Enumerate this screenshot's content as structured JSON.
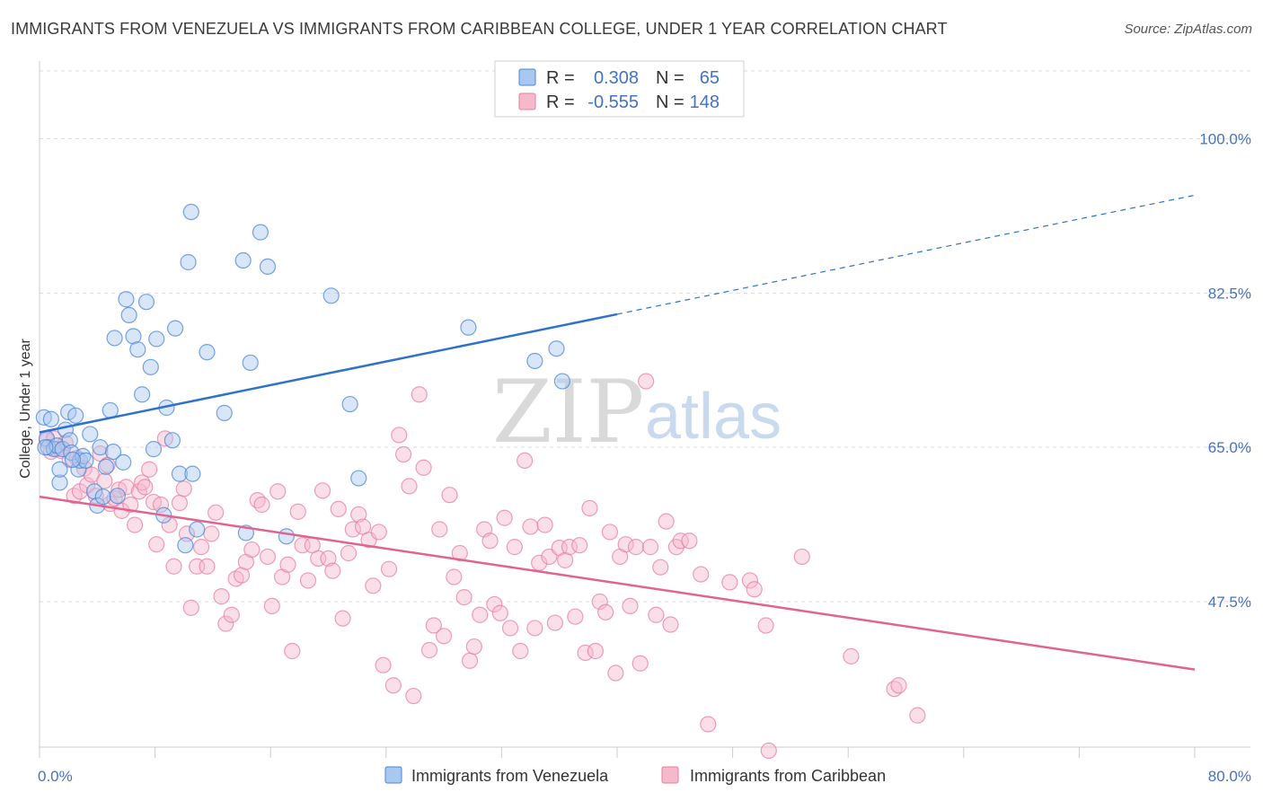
{
  "title": "IMMIGRANTS FROM VENEZUELA VS IMMIGRANTS FROM CARIBBEAN COLLEGE, UNDER 1 YEAR CORRELATION CHART",
  "source": "Source: ZipAtlas.com",
  "watermark": {
    "zip": "ZIP",
    "atlas": "atlas"
  },
  "colors": {
    "venezuela_fill": "#a9c8ef",
    "venezuela_stroke": "#4a86d8",
    "venezuela_line": "#2f72c9",
    "caribbean_fill": "#f6b8cb",
    "caribbean_stroke": "#e77fa1",
    "caribbean_line": "#e0648f",
    "tick_label": "#4472c4",
    "grid": "#dcdcdc"
  },
  "legend": {
    "rows": [
      {
        "r_label": "R =",
        "r_value": "0.308",
        "n_label": "N =",
        "n_value": "65"
      },
      {
        "r_label": "R =",
        "r_value": "-0.555",
        "n_label": "N =",
        "n_value": "148"
      }
    ]
  },
  "chart_data": {
    "type": "scatter",
    "title": "IMMIGRANTS FROM VENEZUELA VS IMMIGRANTS FROM CARIBBEAN COLLEGE, UNDER 1 YEAR CORRELATION CHART",
    "xlabel": "",
    "ylabel": "College, Under 1 year",
    "xlim": [
      0,
      80
    ],
    "ylim": [
      31,
      108
    ],
    "x_tick_labels": [
      "0.0%",
      "80.0%"
    ],
    "y_ticks": [
      47.5,
      65.0,
      82.5,
      100.0
    ],
    "y_tick_labels": [
      "47.5%",
      "65.0%",
      "82.5%",
      "100.0%"
    ],
    "grid": true,
    "legend_position": "top-center",
    "series": [
      {
        "name": "Immigrants from Venezuela",
        "r": 0.308,
        "n": 65,
        "trend": {
          "x0": 0,
          "y0": 66.7,
          "x1": 40,
          "y1": 80.1,
          "dashed_to_x": 80,
          "dashed_to_y": 93.6
        },
        "points": [
          [
            0.3,
            68.4
          ],
          [
            0.5,
            66.0
          ],
          [
            0.6,
            65.0
          ],
          [
            0.8,
            68.2
          ],
          [
            1.0,
            64.8
          ],
          [
            1.2,
            65.2
          ],
          [
            1.4,
            61.0
          ],
          [
            1.4,
            62.5
          ],
          [
            1.6,
            64.8
          ],
          [
            1.8,
            67.0
          ],
          [
            2.0,
            69.0
          ],
          [
            2.1,
            65.8
          ],
          [
            2.2,
            64.4
          ],
          [
            2.5,
            68.6
          ],
          [
            2.7,
            62.5
          ],
          [
            2.8,
            63.5
          ],
          [
            3.0,
            64.0
          ],
          [
            3.2,
            63.5
          ],
          [
            3.5,
            66.5
          ],
          [
            3.8,
            60.0
          ],
          [
            4.0,
            58.4
          ],
          [
            4.2,
            65.0
          ],
          [
            4.4,
            59.4
          ],
          [
            4.6,
            62.8
          ],
          [
            4.9,
            69.2
          ],
          [
            5.1,
            64.5
          ],
          [
            5.4,
            59.5
          ],
          [
            5.8,
            63.3
          ],
          [
            6.0,
            81.8
          ],
          [
            6.2,
            80.0
          ],
          [
            6.5,
            77.6
          ],
          [
            6.8,
            76.1
          ],
          [
            5.2,
            77.4
          ],
          [
            7.1,
            71.0
          ],
          [
            7.4,
            81.5
          ],
          [
            7.7,
            74.1
          ],
          [
            7.9,
            64.8
          ],
          [
            8.1,
            77.3
          ],
          [
            8.6,
            57.3
          ],
          [
            8.8,
            69.5
          ],
          [
            9.2,
            65.8
          ],
          [
            9.4,
            78.5
          ],
          [
            9.7,
            62.0
          ],
          [
            10.1,
            53.9
          ],
          [
            10.3,
            86.0
          ],
          [
            10.5,
            91.7
          ],
          [
            10.6,
            62.0
          ],
          [
            10.9,
            55.7
          ],
          [
            11.6,
            75.8
          ],
          [
            12.8,
            68.9
          ],
          [
            14.1,
            86.2
          ],
          [
            14.3,
            55.3
          ],
          [
            14.6,
            74.6
          ],
          [
            15.3,
            89.4
          ],
          [
            15.8,
            85.5
          ],
          [
            17.1,
            54.9
          ],
          [
            20.2,
            82.2
          ],
          [
            21.5,
            69.9
          ],
          [
            22.1,
            61.5
          ],
          [
            29.7,
            78.6
          ],
          [
            34.3,
            74.8
          ],
          [
            35.8,
            76.2
          ],
          [
            36.2,
            72.5
          ],
          [
            0.4,
            65.0
          ],
          [
            2.3,
            63.6
          ]
        ]
      },
      {
        "name": "Immigrants from Caribbean",
        "r": -0.555,
        "n": 148,
        "trend": {
          "x0": 0,
          "y0": 59.4,
          "x1": 80,
          "y1": 39.8
        },
        "points": [
          [
            0.5,
            65.8
          ],
          [
            0.8,
            64.5
          ],
          [
            1.0,
            66.0
          ],
          [
            1.2,
            64.8
          ],
          [
            1.5,
            64.6
          ],
          [
            1.8,
            65.5
          ],
          [
            2.1,
            63.6
          ],
          [
            2.4,
            59.5
          ],
          [
            2.6,
            63.8
          ],
          [
            2.8,
            60.0
          ],
          [
            3.1,
            62.6
          ],
          [
            3.3,
            60.7
          ],
          [
            3.6,
            61.9
          ],
          [
            3.9,
            59.5
          ],
          [
            4.2,
            64.3
          ],
          [
            4.5,
            61.2
          ],
          [
            4.7,
            63.0
          ],
          [
            4.9,
            58.6
          ],
          [
            5.2,
            59.2
          ],
          [
            5.5,
            60.2
          ],
          [
            5.7,
            57.8
          ],
          [
            6.0,
            60.5
          ],
          [
            6.3,
            58.5
          ],
          [
            6.6,
            56.2
          ],
          [
            6.9,
            60.0
          ],
          [
            7.1,
            61.0
          ],
          [
            7.3,
            60.5
          ],
          [
            7.6,
            62.5
          ],
          [
            7.9,
            58.8
          ],
          [
            8.1,
            54.0
          ],
          [
            8.4,
            58.5
          ],
          [
            8.7,
            66.0
          ],
          [
            9.0,
            56.2
          ],
          [
            9.3,
            51.5
          ],
          [
            9.7,
            58.7
          ],
          [
            10.0,
            60.3
          ],
          [
            10.2,
            55.2
          ],
          [
            10.5,
            46.8
          ],
          [
            10.9,
            51.5
          ],
          [
            11.2,
            53.7
          ],
          [
            11.6,
            51.5
          ],
          [
            11.9,
            55.2
          ],
          [
            12.2,
            57.6
          ],
          [
            12.6,
            48.1
          ],
          [
            12.9,
            45.0
          ],
          [
            13.3,
            46.0
          ],
          [
            13.6,
            50.1
          ],
          [
            14.0,
            50.5
          ],
          [
            14.3,
            52.0
          ],
          [
            14.7,
            53.4
          ],
          [
            15.1,
            59.0
          ],
          [
            15.4,
            58.5
          ],
          [
            15.8,
            52.6
          ],
          [
            16.1,
            47.0
          ],
          [
            16.5,
            60.0
          ],
          [
            16.8,
            50.3
          ],
          [
            17.2,
            51.7
          ],
          [
            17.5,
            41.9
          ],
          [
            17.9,
            57.7
          ],
          [
            18.2,
            53.9
          ],
          [
            18.6,
            49.9
          ],
          [
            18.9,
            53.9
          ],
          [
            19.3,
            52.4
          ],
          [
            19.6,
            60.1
          ],
          [
            20.0,
            52.4
          ],
          [
            20.3,
            51.0
          ],
          [
            20.7,
            58.0
          ],
          [
            21.0,
            45.6
          ],
          [
            21.4,
            53.0
          ],
          [
            21.7,
            55.7
          ],
          [
            22.1,
            57.4
          ],
          [
            22.4,
            56.0
          ],
          [
            22.8,
            54.5
          ],
          [
            23.1,
            49.3
          ],
          [
            23.5,
            55.4
          ],
          [
            23.8,
            40.3
          ],
          [
            24.2,
            51.2
          ],
          [
            24.5,
            38.0
          ],
          [
            24.9,
            66.4
          ],
          [
            25.2,
            64.2
          ],
          [
            25.6,
            60.6
          ],
          [
            25.9,
            36.8
          ],
          [
            26.3,
            71.0
          ],
          [
            26.6,
            62.7
          ],
          [
            27.0,
            42.0
          ],
          [
            27.3,
            44.8
          ],
          [
            27.7,
            55.7
          ],
          [
            28.0,
            43.6
          ],
          [
            28.4,
            59.6
          ],
          [
            28.7,
            50.3
          ],
          [
            29.1,
            53.0
          ],
          [
            29.4,
            48.0
          ],
          [
            29.8,
            40.8
          ],
          [
            30.1,
            42.4
          ],
          [
            30.5,
            46.0
          ],
          [
            30.8,
            55.7
          ],
          [
            31.2,
            54.4
          ],
          [
            31.5,
            47.2
          ],
          [
            31.9,
            46.2
          ],
          [
            32.2,
            57.0
          ],
          [
            32.6,
            44.5
          ],
          [
            32.9,
            53.7
          ],
          [
            33.3,
            41.9
          ],
          [
            33.6,
            63.5
          ],
          [
            34.0,
            56.0
          ],
          [
            34.3,
            44.5
          ],
          [
            34.6,
            51.9
          ],
          [
            35.0,
            56.2
          ],
          [
            35.3,
            52.6
          ],
          [
            35.7,
            45.1
          ],
          [
            36.0,
            53.6
          ],
          [
            36.4,
            52.2
          ],
          [
            36.7,
            53.7
          ],
          [
            37.1,
            45.8
          ],
          [
            37.4,
            53.9
          ],
          [
            37.8,
            41.7
          ],
          [
            38.1,
            58.1
          ],
          [
            38.5,
            41.9
          ],
          [
            38.8,
            47.5
          ],
          [
            39.2,
            46.3
          ],
          [
            39.5,
            55.4
          ],
          [
            39.9,
            39.4
          ],
          [
            40.2,
            52.6
          ],
          [
            40.6,
            54.0
          ],
          [
            40.9,
            47.0
          ],
          [
            41.3,
            53.7
          ],
          [
            41.6,
            40.5
          ],
          [
            42.0,
            72.5
          ],
          [
            42.3,
            53.7
          ],
          [
            42.7,
            46.0
          ],
          [
            43.0,
            51.4
          ],
          [
            43.4,
            56.6
          ],
          [
            43.7,
            44.9
          ],
          [
            44.1,
            53.7
          ],
          [
            44.4,
            54.4
          ],
          [
            45.0,
            54.4
          ],
          [
            45.8,
            50.6
          ],
          [
            46.3,
            33.6
          ],
          [
            47.8,
            49.7
          ],
          [
            49.2,
            49.9
          ],
          [
            49.5,
            48.9
          ],
          [
            50.3,
            44.8
          ],
          [
            50.5,
            30.6
          ],
          [
            52.8,
            52.6
          ],
          [
            56.2,
            41.3
          ],
          [
            59.2,
            37.6
          ],
          [
            59.5,
            38.0
          ],
          [
            60.8,
            34.6
          ]
        ]
      }
    ]
  }
}
